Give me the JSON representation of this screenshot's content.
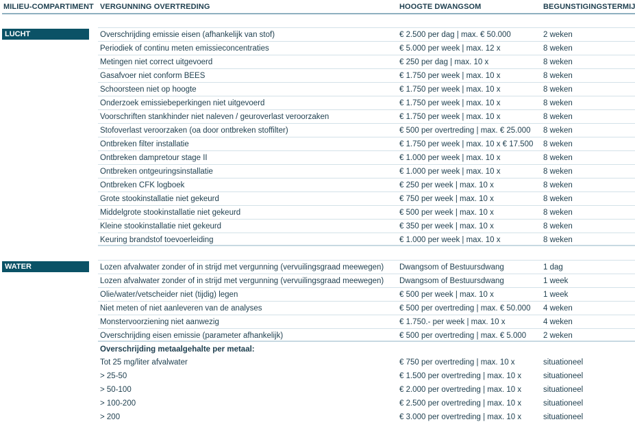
{
  "headers": {
    "compartment": "MILIEU-COMPARTIMENT",
    "violation": "VERGUNNING OVERTREDING",
    "penalty": "HOOGTE DWANGSOM",
    "term": "BEGUNSTIGINGSTERMIJN"
  },
  "sections": [
    {
      "name": "LUCHT",
      "rows": [
        [
          "Overschrijding emissie eisen (afhankelijk van stof)",
          "€ 2.500 per dag | max. € 50.000",
          "2 weken"
        ],
        [
          "Periodiek of continu meten emissieconcentraties",
          "€ 5.000 per week | max. 12 x",
          "8 weken"
        ],
        [
          "Metingen niet correct uitgevoerd",
          "€ 250 per dag | max. 10 x",
          "8 weken"
        ],
        [
          "Gasafvoer niet conform BEES",
          "€ 1.750 per week | max. 10 x",
          "8 weken"
        ],
        [
          "Schoorsteen niet op hoogte",
          "€ 1.750 per week | max. 10 x",
          "8 weken"
        ],
        [
          "Onderzoek emissiebeperkingen niet uitgevoerd",
          "€ 1.750 per week | max. 10 x",
          "8 weken"
        ],
        [
          "Voorschriften stankhinder niet naleven / geuroverlast veroorzaken",
          "€ 1.750 per week | max. 10 x",
          "8 weken"
        ],
        [
          "Stofoverlast veroorzaken (oa door ontbreken stoffilter)",
          "€ 500 per overtreding | max. € 25.000",
          "8 weken"
        ],
        [
          "Ontbreken filter installatie",
          "€ 1.750 per week | max. 10 x € 17.500",
          "8 weken"
        ],
        [
          "Ontbreken dampretour stage II",
          "€ 1.000 per week | max. 10 x",
          "8 weken"
        ],
        [
          "Ontbreken ontgeuringsinstallatie",
          "€ 1.000 per week | max. 10 x",
          "8 weken"
        ],
        [
          "Ontbreken CFK logboek",
          "€ 250 per week | max. 10 x",
          "8 weken"
        ],
        [
          "Grote stookinstallatie niet gekeurd",
          "€ 750 per week | max. 10 x",
          "8 weken"
        ],
        [
          "Middelgrote stookinstallatie niet gekeurd",
          "€ 500 per week | max. 10 x",
          "8 weken"
        ],
        [
          "Kleine stookinstallatie niet gekeurd",
          "€ 350 per week | max. 10 x",
          "8 weken"
        ],
        [
          "Keuring brandstof toevoerleiding",
          "€ 1.000 per week | max. 10 x",
          "8 weken"
        ]
      ]
    },
    {
      "name": "WATER",
      "rows": [
        [
          "Lozen afvalwater zonder of in strijd met vergunning (vervuilingsgraad meewegen)",
          "Dwangsom of Bestuursdwang",
          "1 dag"
        ],
        [
          "Lozen afvalwater zonder of in strijd met vergunning (vervuilingsgraad meewegen)",
          "Dwangsom of Bestuursdwang",
          "1 week"
        ],
        [
          "Olie/water/vetscheider niet (tijdig) legen",
          "€ 500 per week | max. 10 x",
          "1 week"
        ],
        [
          "Niet meten of niet aanleveren van de analyses",
          "€ 500 per overtreding | max. € 50.000",
          "4 weken"
        ],
        [
          "Monstervoorziening niet aanwezig",
          "€ 1.750.- per week | max. 10 x",
          "4 weken"
        ],
        [
          "Overschrijding eisen emissie (parameter afhankelijk)",
          "€ 500 per overtreding | max. € 5.000",
          "2 weken"
        ]
      ],
      "subheading": "Overschrijding metaalgehalte per metaal:",
      "subrows": [
        [
          "Tot 25 mg/liter afvalwater",
          "€ 750 per overtreding | max. 10 x",
          "situationeel"
        ],
        [
          "> 25-50",
          "€ 1.500 per overtreding | max. 10 x",
          "situationeel"
        ],
        [
          "> 50-100",
          "€ 2.000 per overtreding | max. 10 x",
          "situationeel"
        ],
        [
          "> 100-200",
          "€ 2.500 per overtreding | max. 10 x",
          "situationeel"
        ],
        [
          "> 200",
          "€ 3.000 per overtreding | max. 10 x",
          "situationeel"
        ]
      ]
    }
  ]
}
